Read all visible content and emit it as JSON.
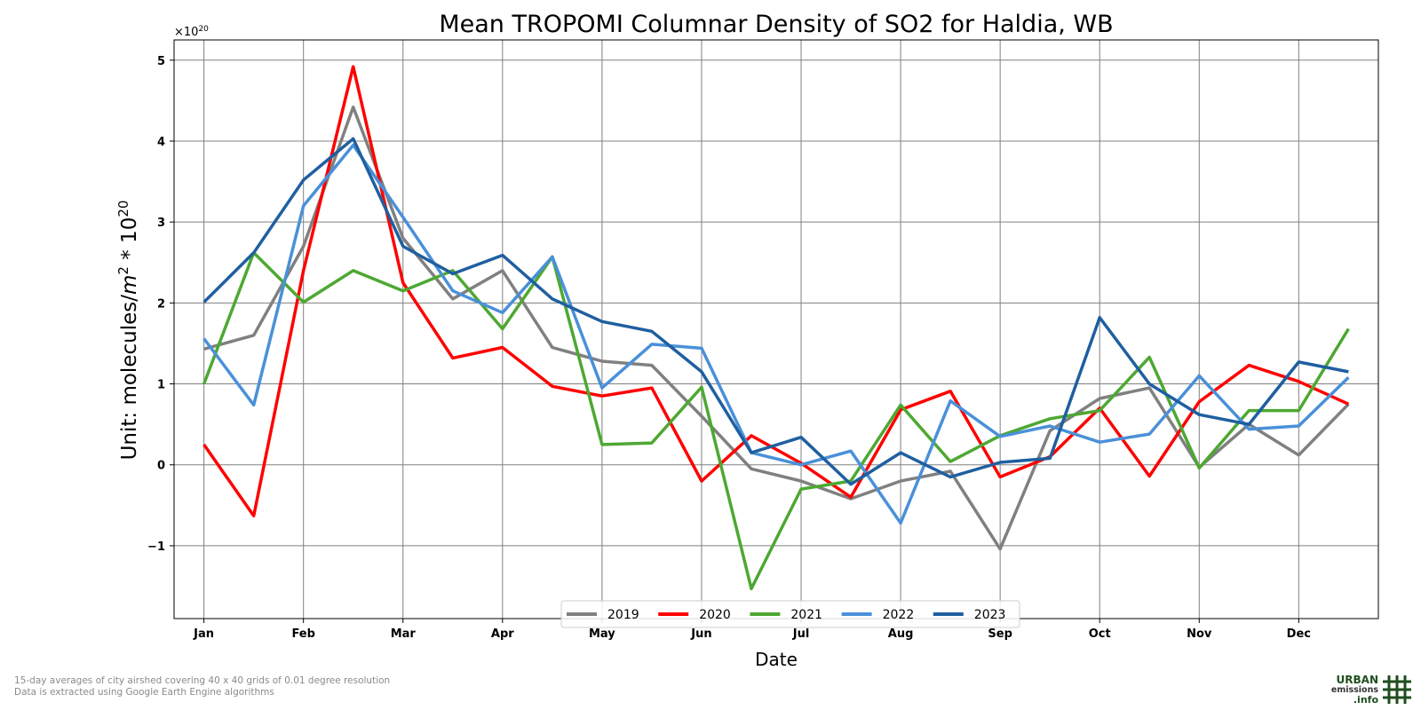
{
  "chart_data": {
    "type": "line",
    "title": "Mean TROPOMI Columnar Density of SO2 for Haldia, WB",
    "xlabel": "Date",
    "ylabel": "Unit: molecules/m² * 10²⁰",
    "ylabel_parts": {
      "a": "Unit: molecules/",
      "b": "m",
      "c": "2",
      "d": " * 10",
      "e": "20"
    },
    "offset_label": {
      "base": "×10",
      "exp": "20"
    },
    "y_ticks": [
      -1,
      0,
      1,
      2,
      3,
      4,
      5
    ],
    "y_tick_labels": [
      "−1",
      "0",
      "1",
      "2",
      "3",
      "4",
      "5"
    ],
    "ylim": [
      -1.9,
      5.25
    ],
    "x_ticks": [
      "Jan",
      "Feb",
      "Mar",
      "Apr",
      "May",
      "Jun",
      "Jul",
      "Aug",
      "Sep",
      "Oct",
      "Nov",
      "Dec"
    ],
    "x_points_per_tick": 2,
    "x_point_count": 24,
    "xlim": [
      -0.6,
      23.6
    ],
    "grid": true,
    "legend_position": "bottom-center",
    "series": [
      {
        "name": "2019",
        "color": "#808080",
        "values": [
          1.43,
          1.6,
          2.7,
          4.42,
          2.8,
          2.05,
          2.4,
          1.45,
          1.28,
          1.23,
          0.6,
          -0.05,
          -0.2,
          -0.42,
          -0.2,
          -0.08,
          -1.04,
          0.42,
          0.82,
          0.95,
          -0.03,
          0.5,
          0.12,
          0.75
        ]
      },
      {
        "name": "2020",
        "color": "#ff0000",
        "values": [
          0.25,
          -0.63,
          2.4,
          4.92,
          2.25,
          1.32,
          1.45,
          0.97,
          0.85,
          0.95,
          -0.2,
          0.36,
          0.02,
          -0.4,
          0.68,
          0.91,
          -0.15,
          0.1,
          0.7,
          -0.14,
          0.78,
          1.23,
          1.03,
          0.75
        ]
      },
      {
        "name": "2021",
        "color": "#4da832",
        "values": [
          1.0,
          2.62,
          2.01,
          2.4,
          2.15,
          2.4,
          1.68,
          2.57,
          0.25,
          0.27,
          0.96,
          -1.53,
          -0.3,
          -0.2,
          0.74,
          0.04,
          0.36,
          0.57,
          0.67,
          1.33,
          -0.04,
          0.67,
          0.67,
          1.68
        ]
      },
      {
        "name": "2022",
        "color": "#4a90d9",
        "values": [
          1.56,
          0.74,
          3.2,
          3.95,
          3.06,
          2.15,
          1.88,
          2.57,
          0.95,
          1.49,
          1.44,
          0.15,
          0.0,
          0.17,
          -0.72,
          0.79,
          0.35,
          0.48,
          0.28,
          0.38,
          1.1,
          0.44,
          0.48,
          1.08
        ]
      },
      {
        "name": "2023",
        "color": "#1f5fa0",
        "values": [
          2.01,
          2.62,
          3.52,
          4.03,
          2.7,
          2.36,
          2.59,
          2.05,
          1.77,
          1.65,
          1.15,
          0.15,
          0.34,
          -0.24,
          0.15,
          -0.15,
          0.03,
          0.08,
          1.82,
          1.0,
          0.62,
          0.5,
          1.27,
          1.15
        ]
      }
    ]
  },
  "footnote": {
    "line1": "15-day averages of city airshed covering 40 x 40 grids of 0.01 degree resolution",
    "line2": "Data is extracted using Google Earth Engine algorithms"
  },
  "logo": {
    "line1": "URBAN",
    "line2": "emissions",
    "line3": ".info",
    "color": "#1f4e1f"
  }
}
